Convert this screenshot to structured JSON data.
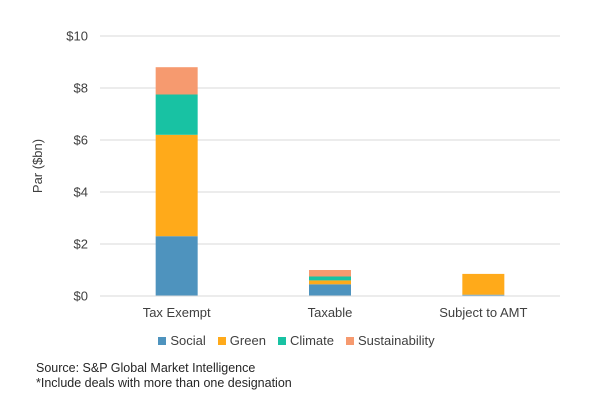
{
  "chart_data": {
    "type": "bar",
    "stacked": true,
    "categories": [
      "Tax Exempt",
      "Taxable",
      "Subject to AMT"
    ],
    "series": [
      {
        "name": "Social",
        "values": [
          2.3,
          0.45,
          0.05
        ],
        "color": "#4E93BE"
      },
      {
        "name": "Green",
        "values": [
          3.9,
          0.15,
          0.8
        ],
        "color": "#FFAA1A"
      },
      {
        "name": "Climate",
        "values": [
          1.55,
          0.15,
          0.0
        ],
        "color": "#18C2A3"
      },
      {
        "name": "Sustainability",
        "values": [
          1.05,
          0.25,
          0.0
        ],
        "color": "#F69A6F"
      }
    ],
    "title": "",
    "xlabel": "",
    "ylabel": "Par ($bn)",
    "ylim": [
      0,
      10
    ],
    "yticks": [
      0,
      2,
      4,
      6,
      8,
      10
    ],
    "ytick_labels": [
      "$0",
      "$2",
      "$4",
      "$6",
      "$8",
      "$10"
    ],
    "grid": true,
    "legend_position": "bottom"
  },
  "footnotes": {
    "source": "Source: S&P Global Market Intelligence",
    "note": "*Include deals with more than one designation"
  }
}
